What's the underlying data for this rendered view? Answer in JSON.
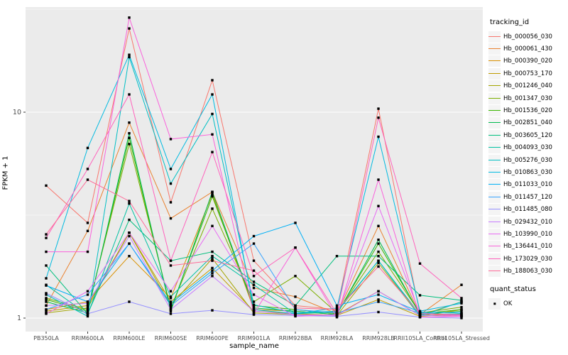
{
  "figure": {
    "panel_bg": "#EBEBEB",
    "grid_color": "#FFFFFF",
    "axis_text_color": "#4D4D4D",
    "tick_color": "#333333",
    "point_color": "#000000"
  },
  "axes": {
    "y_title": "FPKM + 1",
    "x_title": "sample_name",
    "y_tick_labels": [
      "10",
      "1"
    ],
    "y_tick_values": [
      10,
      1
    ]
  },
  "legend": {
    "tracking_title": "tracking_id",
    "quant_title": "quant_status",
    "quant_items": [
      {
        "label": "OK"
      }
    ]
  },
  "chart_data": {
    "type": "line",
    "title": "",
    "xlabel": "sample_name",
    "ylabel": "FPKM + 1",
    "y_scale": "log10",
    "ylim": [
      0.86,
      32.4
    ],
    "grid": true,
    "legend_position": "right",
    "x": [
      "PB350LA",
      "RRIM600LA",
      "RRIM600LE",
      "RRIM600SE",
      "RRIM600PE",
      "RRIM901LA",
      "RRIM928BA",
      "RRIM928LA",
      "RRIM928LB",
      "RRII105LA_Control",
      "RRII105LA_Stressed"
    ],
    "series": [
      {
        "name": "Hb_000056_030",
        "color": "#F8766D",
        "values": [
          4.4,
          2.9,
          25.5,
          3.65,
          14.3,
          1.9,
          1.15,
          1.1,
          10.4,
          1.05,
          1.02
        ]
      },
      {
        "name": "Hb_000061_430",
        "color": "#EA8331",
        "values": [
          1.15,
          2.65,
          8.9,
          3.05,
          4.1,
          1.4,
          1.27,
          1.05,
          2.8,
          1.04,
          1.45
        ]
      },
      {
        "name": "Hb_000390_020",
        "color": "#D89000",
        "values": [
          1.1,
          1.2,
          2.0,
          1.25,
          4.0,
          1.1,
          1.08,
          1.04,
          1.35,
          1.03,
          1.2
        ]
      },
      {
        "name": "Hb_000753_170",
        "color": "#C09B00",
        "values": [
          1.08,
          1.15,
          2.6,
          1.2,
          1.75,
          1.08,
          1.05,
          1.03,
          1.23,
          1.02,
          1.1
        ]
      },
      {
        "name": "Hb_001246_040",
        "color": "#A3A500",
        "values": [
          1.06,
          1.12,
          2.6,
          1.15,
          1.95,
          1.06,
          1.04,
          1.03,
          1.85,
          1.02,
          1.05
        ]
      },
      {
        "name": "Hb_001347_030",
        "color": "#7CAE00",
        "values": [
          1.25,
          1.1,
          7.0,
          1.12,
          3.4,
          1.2,
          1.6,
          1.06,
          2.1,
          1.06,
          1.13
        ]
      },
      {
        "name": "Hb_001536_020",
        "color": "#39B600",
        "values": [
          1.23,
          1.08,
          7.5,
          1.1,
          3.9,
          1.15,
          1.1,
          1.05,
          2.3,
          1.05,
          1.1
        ]
      },
      {
        "name": "Hb_002851_040",
        "color": "#00BB4E",
        "values": [
          1.2,
          1.06,
          7.9,
          1.08,
          4.1,
          1.12,
          1.08,
          1.04,
          2.4,
          1.04,
          1.08
        ]
      },
      {
        "name": "Hb_003605_120",
        "color": "#00BF7D",
        "values": [
          1.8,
          1.05,
          3.0,
          1.9,
          2.1,
          1.5,
          1.15,
          2.0,
          2.0,
          1.29,
          1.22
        ]
      },
      {
        "name": "Hb_004093_030",
        "color": "#00C1A3",
        "values": [
          1.45,
          1.04,
          3.6,
          1.27,
          2.0,
          1.45,
          1.05,
          1.07,
          1.9,
          1.04,
          1.05
        ]
      },
      {
        "name": "Hb_005276_030",
        "color": "#00BFC4",
        "values": [
          1.3,
          1.02,
          18.5,
          4.5,
          9.8,
          1.16,
          1.06,
          1.08,
          1.9,
          1.02,
          1.2
        ]
      },
      {
        "name": "Hb_010863_030",
        "color": "#00BAE0",
        "values": [
          1.56,
          6.7,
          19.0,
          5.3,
          12.2,
          1.1,
          1.05,
          1.12,
          7.6,
          1.08,
          1.18
        ]
      },
      {
        "name": "Hb_011033_010",
        "color": "#00B0F6",
        "values": [
          1.44,
          1.2,
          2.3,
          1.18,
          1.7,
          2.5,
          2.9,
          1.15,
          1.3,
          1.07,
          1.06
        ]
      },
      {
        "name": "Hb_011457_120",
        "color": "#35A2FF",
        "values": [
          1.1,
          1.3,
          2.3,
          1.15,
          1.65,
          2.3,
          1.1,
          1.06,
          1.2,
          1.06,
          1.03
        ]
      },
      {
        "name": "Hb_011485_080",
        "color": "#9590FF",
        "values": [
          1.32,
          1.05,
          1.2,
          1.05,
          1.09,
          1.04,
          1.03,
          1.02,
          1.07,
          1.01,
          1.0
        ]
      },
      {
        "name": "Hb_029432_010",
        "color": "#C77CFF",
        "values": [
          1.15,
          1.18,
          2.5,
          1.1,
          1.6,
          1.08,
          1.04,
          1.03,
          1.35,
          1.03,
          1.02
        ]
      },
      {
        "name": "Hb_103990_010",
        "color": "#E76BF3",
        "values": [
          1.05,
          1.35,
          2.6,
          1.35,
          2.8,
          1.3,
          1.02,
          1.04,
          3.5,
          1.05,
          1.03
        ]
      },
      {
        "name": "Hb_136441_010",
        "color": "#FA62DB",
        "values": [
          2.1,
          2.1,
          28.8,
          7.4,
          7.8,
          1.05,
          2.2,
          1.01,
          4.7,
          1.01,
          1.02
        ]
      },
      {
        "name": "Hb_173029_030",
        "color": "#FF62BC",
        "values": [
          2.45,
          5.3,
          12.2,
          1.9,
          6.4,
          1.6,
          2.2,
          1.05,
          9.4,
          1.84,
          1.25
        ]
      },
      {
        "name": "Hb_188063_030",
        "color": "#FF6A98",
        "values": [
          2.55,
          4.7,
          3.7,
          1.8,
          1.9,
          1.7,
          1.12,
          1.1,
          1.78,
          1.05,
          1.04
        ]
      }
    ]
  }
}
